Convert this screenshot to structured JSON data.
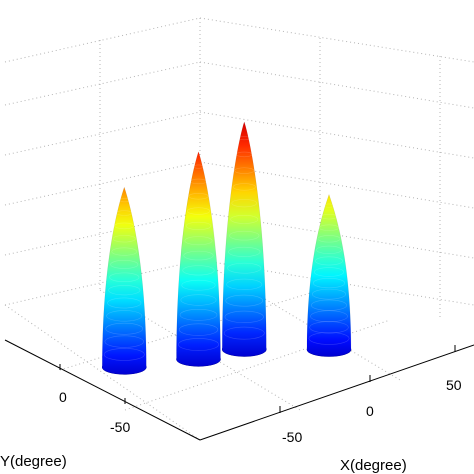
{
  "chart_data": {
    "type": "surface3d",
    "title": "",
    "xlabel": "X(degree)",
    "ylabel": "Y(degree)",
    "x_ticks": [
      "-50",
      "0",
      "50"
    ],
    "y_ticks": [
      "-50",
      "0"
    ],
    "colormap": "jet",
    "grid": true,
    "peaks": [
      {
        "x": -40,
        "y": 25,
        "height": 0.72
      },
      {
        "x": -15,
        "y": 10,
        "height": 0.83
      },
      {
        "x": 5,
        "y": 5,
        "height": 0.91
      },
      {
        "x": 25,
        "y": -20,
        "height": 0.62
      }
    ]
  }
}
